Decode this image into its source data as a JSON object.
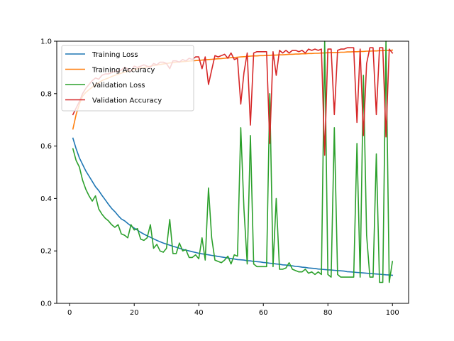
{
  "chart_data": {
    "type": "line",
    "title": "",
    "xlabel": "",
    "ylabel": "",
    "xlim": [
      -4,
      105
    ],
    "ylim": [
      0,
      1.0
    ],
    "xticks": [
      0,
      20,
      40,
      60,
      80,
      100
    ],
    "yticks": [
      0.0,
      0.2,
      0.4,
      0.6,
      0.8,
      1.0
    ],
    "xtick_labels": [
      "0",
      "20",
      "40",
      "60",
      "80",
      "100"
    ],
    "ytick_labels": [
      "0.0",
      "0.2",
      "0.4",
      "0.6",
      "0.8",
      "1.0"
    ],
    "grid": false,
    "legend_position": "top-left",
    "x": [
      1,
      2,
      3,
      4,
      5,
      6,
      7,
      8,
      9,
      10,
      11,
      12,
      13,
      14,
      15,
      16,
      17,
      18,
      19,
      20,
      21,
      22,
      23,
      24,
      25,
      26,
      27,
      28,
      29,
      30,
      31,
      32,
      33,
      34,
      35,
      36,
      37,
      38,
      39,
      40,
      41,
      42,
      43,
      44,
      45,
      46,
      47,
      48,
      49,
      50,
      51,
      52,
      53,
      54,
      55,
      56,
      57,
      58,
      59,
      60,
      61,
      62,
      63,
      64,
      65,
      66,
      67,
      68,
      69,
      70,
      71,
      72,
      73,
      74,
      75,
      76,
      77,
      78,
      79,
      80,
      81,
      82,
      83,
      84,
      85,
      86,
      87,
      88,
      89,
      90,
      91,
      92,
      93,
      94,
      95,
      96,
      97,
      98,
      99,
      100
    ],
    "series": [
      {
        "name": "Training Loss",
        "color": "#1f77b4",
        "values": [
          0.63,
          0.59,
          0.555,
          0.53,
          0.505,
          0.485,
          0.465,
          0.445,
          0.43,
          0.412,
          0.395,
          0.378,
          0.362,
          0.35,
          0.335,
          0.322,
          0.315,
          0.305,
          0.295,
          0.287,
          0.279,
          0.271,
          0.264,
          0.258,
          0.252,
          0.246,
          0.24,
          0.235,
          0.23,
          0.226,
          0.222,
          0.218,
          0.214,
          0.21,
          0.206,
          0.203,
          0.2,
          0.197,
          0.194,
          0.191,
          0.189,
          0.187,
          0.185,
          0.183,
          0.181,
          0.179,
          0.177,
          0.175,
          0.173,
          0.171,
          0.169,
          0.167,
          0.166,
          0.165,
          0.163,
          0.162,
          0.16,
          0.159,
          0.158,
          0.156,
          0.155,
          0.153,
          0.152,
          0.15,
          0.149,
          0.147,
          0.146,
          0.144,
          0.143,
          0.141,
          0.14,
          0.138,
          0.137,
          0.135,
          0.134,
          0.133,
          0.131,
          0.13,
          0.129,
          0.128,
          0.127,
          0.126,
          0.125,
          0.124,
          0.123,
          0.121,
          0.12,
          0.119,
          0.118,
          0.117,
          0.116,
          0.115,
          0.114,
          0.113,
          0.112,
          0.111,
          0.11,
          0.109,
          0.108,
          0.107
        ]
      },
      {
        "name": "Training Accuracy",
        "color": "#ff7f0e",
        "values": [
          0.665,
          0.72,
          0.76,
          0.79,
          0.805,
          0.815,
          0.825,
          0.835,
          0.842,
          0.85,
          0.855,
          0.86,
          0.865,
          0.87,
          0.874,
          0.878,
          0.882,
          0.886,
          0.889,
          0.892,
          0.895,
          0.897,
          0.9,
          0.902,
          0.905,
          0.907,
          0.909,
          0.911,
          0.913,
          0.915,
          0.917,
          0.918,
          0.92,
          0.921,
          0.922,
          0.923,
          0.924,
          0.925,
          0.926,
          0.927,
          0.928,
          0.929,
          0.93,
          0.931,
          0.932,
          0.933,
          0.934,
          0.935,
          0.936,
          0.937,
          0.938,
          0.939,
          0.94,
          0.941,
          0.942,
          0.943,
          0.944,
          0.944,
          0.945,
          0.945,
          0.946,
          0.946,
          0.947,
          0.947,
          0.948,
          0.948,
          0.949,
          0.95,
          0.95,
          0.951,
          0.951,
          0.952,
          0.952,
          0.953,
          0.953,
          0.954,
          0.954,
          0.955,
          0.955,
          0.956,
          0.956,
          0.957,
          0.957,
          0.958,
          0.958,
          0.959,
          0.959,
          0.96,
          0.96,
          0.961,
          0.961,
          0.962,
          0.962,
          0.963,
          0.963,
          0.964,
          0.964,
          0.965,
          0.965,
          0.966
        ]
      },
      {
        "name": "Validation Loss",
        "color": "#2ca02c",
        "values": [
          0.59,
          0.545,
          0.52,
          0.47,
          0.435,
          0.41,
          0.39,
          0.41,
          0.36,
          0.34,
          0.325,
          0.315,
          0.3,
          0.29,
          0.3,
          0.265,
          0.26,
          0.25,
          0.3,
          0.28,
          0.285,
          0.245,
          0.24,
          0.25,
          0.3,
          0.21,
          0.225,
          0.2,
          0.195,
          0.21,
          0.32,
          0.19,
          0.19,
          0.23,
          0.2,
          0.205,
          0.175,
          0.175,
          0.185,
          0.17,
          0.25,
          0.165,
          0.44,
          0.25,
          0.165,
          0.16,
          0.155,
          0.165,
          0.18,
          0.15,
          0.185,
          0.18,
          0.67,
          0.36,
          0.15,
          0.64,
          0.15,
          0.14,
          0.14,
          0.14,
          0.14,
          0.8,
          0.14,
          0.4,
          0.13,
          0.13,
          0.135,
          0.155,
          0.13,
          0.125,
          0.12,
          0.12,
          0.13,
          0.115,
          0.12,
          0.11,
          0.12,
          0.11,
          1.0,
          0.11,
          0.1,
          0.67,
          0.11,
          0.1,
          0.1,
          0.1,
          0.1,
          0.1,
          0.61,
          0.1,
          0.87,
          0.26,
          0.1,
          0.1,
          0.57,
          0.08,
          0.08,
          1.0,
          0.08,
          0.16
        ]
      },
      {
        "name": "Validation Accuracy",
        "color": "#d62728",
        "values": [
          0.72,
          0.745,
          0.77,
          0.8,
          0.82,
          0.835,
          0.85,
          0.86,
          0.855,
          0.87,
          0.875,
          0.875,
          0.88,
          0.885,
          0.885,
          0.89,
          0.9,
          0.895,
          0.885,
          0.905,
          0.9,
          0.905,
          0.91,
          0.905,
          0.9,
          0.915,
          0.91,
          0.92,
          0.92,
          0.915,
          0.895,
          0.925,
          0.925,
          0.92,
          0.93,
          0.925,
          0.935,
          0.93,
          0.94,
          0.94,
          0.895,
          0.94,
          0.835,
          0.89,
          0.945,
          0.94,
          0.945,
          0.95,
          0.935,
          0.955,
          0.93,
          0.935,
          0.76,
          0.88,
          0.955,
          0.68,
          0.955,
          0.96,
          0.96,
          0.96,
          0.96,
          0.61,
          0.96,
          0.87,
          0.965,
          0.955,
          0.965,
          0.955,
          0.965,
          0.965,
          0.96,
          0.965,
          0.955,
          0.97,
          0.965,
          0.97,
          0.965,
          0.97,
          0.565,
          0.97,
          0.97,
          0.72,
          0.965,
          0.97,
          0.97,
          0.975,
          0.975,
          0.975,
          0.69,
          0.97,
          0.64,
          0.915,
          0.975,
          0.975,
          0.72,
          0.975,
          0.975,
          0.635,
          0.97,
          0.955
        ]
      }
    ]
  }
}
